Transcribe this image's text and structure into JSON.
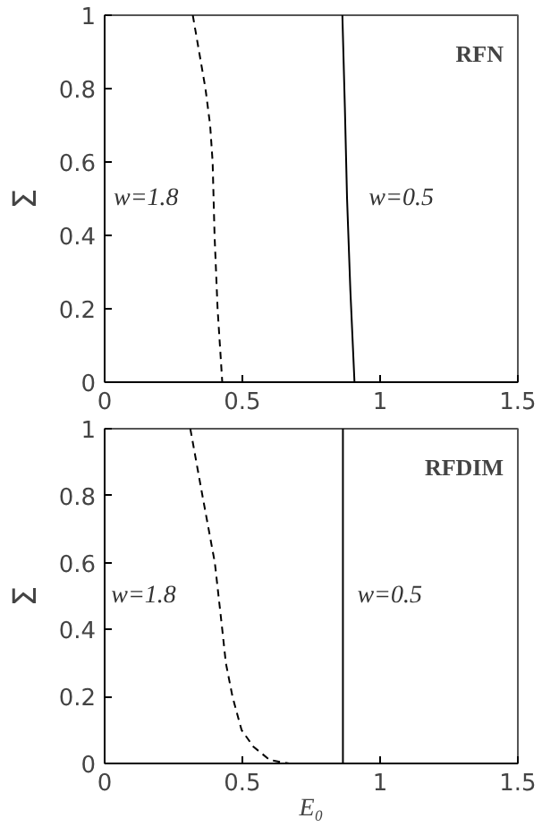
{
  "chart_data": [
    {
      "type": "line",
      "ylabel": "Σ",
      "annotations": [
        "RFN"
      ],
      "xlim": [
        0,
        1.5
      ],
      "ylim": [
        0,
        1
      ],
      "xticks": [
        0,
        0.5,
        1,
        1.5
      ],
      "yticks": [
        0,
        0.2,
        0.4,
        0.6,
        0.8,
        1
      ],
      "grid": false,
      "series": [
        {
          "name": "w=1.8",
          "color": "#000000",
          "line_style": "dashed",
          "x": [
            0.32,
            0.366,
            0.383,
            0.392,
            0.399,
            0.41,
            0.427
          ],
          "values": [
            1,
            0.8,
            0.7,
            0.6,
            0.4,
            0.2,
            0
          ]
        },
        {
          "name": "w=0.5",
          "color": "#000000",
          "line_style": "solid",
          "x": [
            0.863,
            0.872,
            0.88,
            0.892,
            0.907
          ],
          "values": [
            1,
            0.75,
            0.5,
            0.25,
            0
          ]
        }
      ]
    },
    {
      "type": "line",
      "ylabel": "Σ",
      "xlabel": "E₀",
      "annotations": [
        "RFDIM"
      ],
      "xlim": [
        0,
        1.5
      ],
      "ylim": [
        0,
        1
      ],
      "xticks": [
        0,
        0.5,
        1,
        1.5
      ],
      "yticks": [
        0,
        0.2,
        0.4,
        0.6,
        0.8,
        1
      ],
      "grid": false,
      "series": [
        {
          "name": "w=1.8",
          "color": "#000000",
          "line_style": "dashed",
          "x": [
            0.311,
            0.355,
            0.4,
            0.427,
            0.44,
            0.464,
            0.497,
            0.54,
            0.6,
            0.67
          ],
          "values": [
            1,
            0.8,
            0.6,
            0.4,
            0.3,
            0.2,
            0.1,
            0.05,
            0.01,
            0
          ]
        },
        {
          "name": "w=0.5",
          "color": "#000000",
          "line_style": "solid",
          "x": [
            0.865,
            0.865
          ],
          "values": [
            1,
            0
          ]
        }
      ]
    }
  ]
}
